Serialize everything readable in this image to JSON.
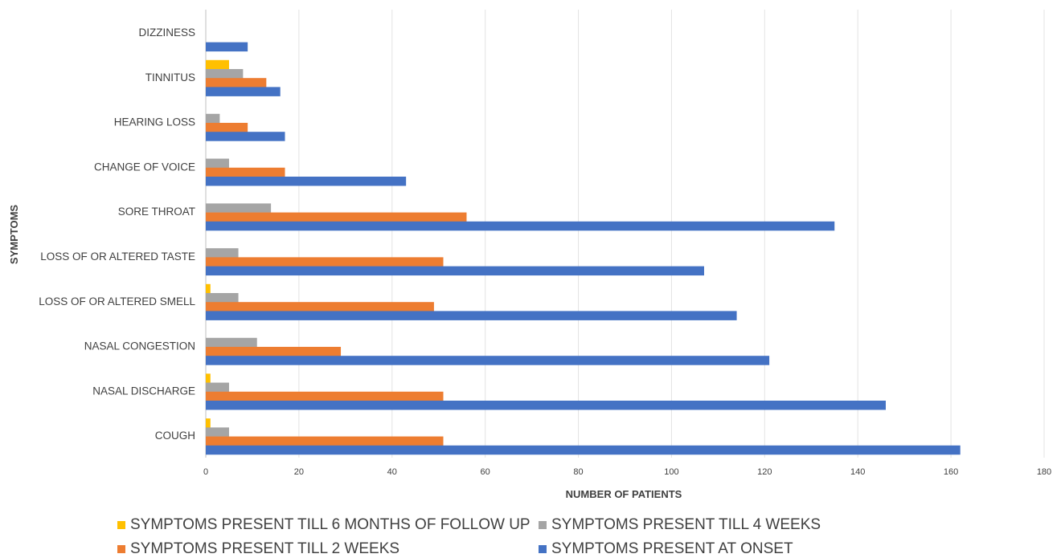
{
  "chart_data": {
    "type": "bar",
    "orientation": "horizontal",
    "title": "",
    "xlabel": "NUMBER OF PATIENTS",
    "ylabel": "SYMPTOMS",
    "xlim": [
      0,
      180
    ],
    "xticks": [
      0,
      20,
      40,
      60,
      80,
      100,
      120,
      140,
      160,
      180
    ],
    "grid": true,
    "legend_position": "bottom",
    "categories": [
      "COUGH",
      "NASAL DISCHARGE",
      "NASAL CONGESTION",
      "LOSS OF OR ALTERED SMELL",
      "LOSS OF OR ALTERED TASTE",
      "SORE THROAT",
      "CHANGE OF VOICE",
      "HEARING LOSS",
      "TINNITUS",
      "DIZZINESS"
    ],
    "series": [
      {
        "name": "SYMPTOMS PRESENT TILL 6 MONTHS OF FOLLOW UP",
        "color": "#ffc000",
        "values": [
          1,
          1,
          0,
          1,
          0,
          0,
          0,
          0,
          5,
          0
        ]
      },
      {
        "name": "SYMPTOMS PRESENT TILL 4 WEEKS",
        "color": "#a5a5a5",
        "values": [
          5,
          5,
          11,
          7,
          7,
          14,
          5,
          3,
          8,
          0
        ]
      },
      {
        "name": "SYMPTOMS PRESENT TILL 2 WEEKS",
        "color": "#ed7d31",
        "values": [
          51,
          51,
          29,
          49,
          51,
          56,
          17,
          9,
          13,
          0
        ]
      },
      {
        "name": "SYMPTOMS PRESENT AT ONSET",
        "color": "#4472c4",
        "values": [
          162,
          146,
          121,
          114,
          107,
          135,
          43,
          17,
          16,
          9
        ]
      }
    ]
  }
}
